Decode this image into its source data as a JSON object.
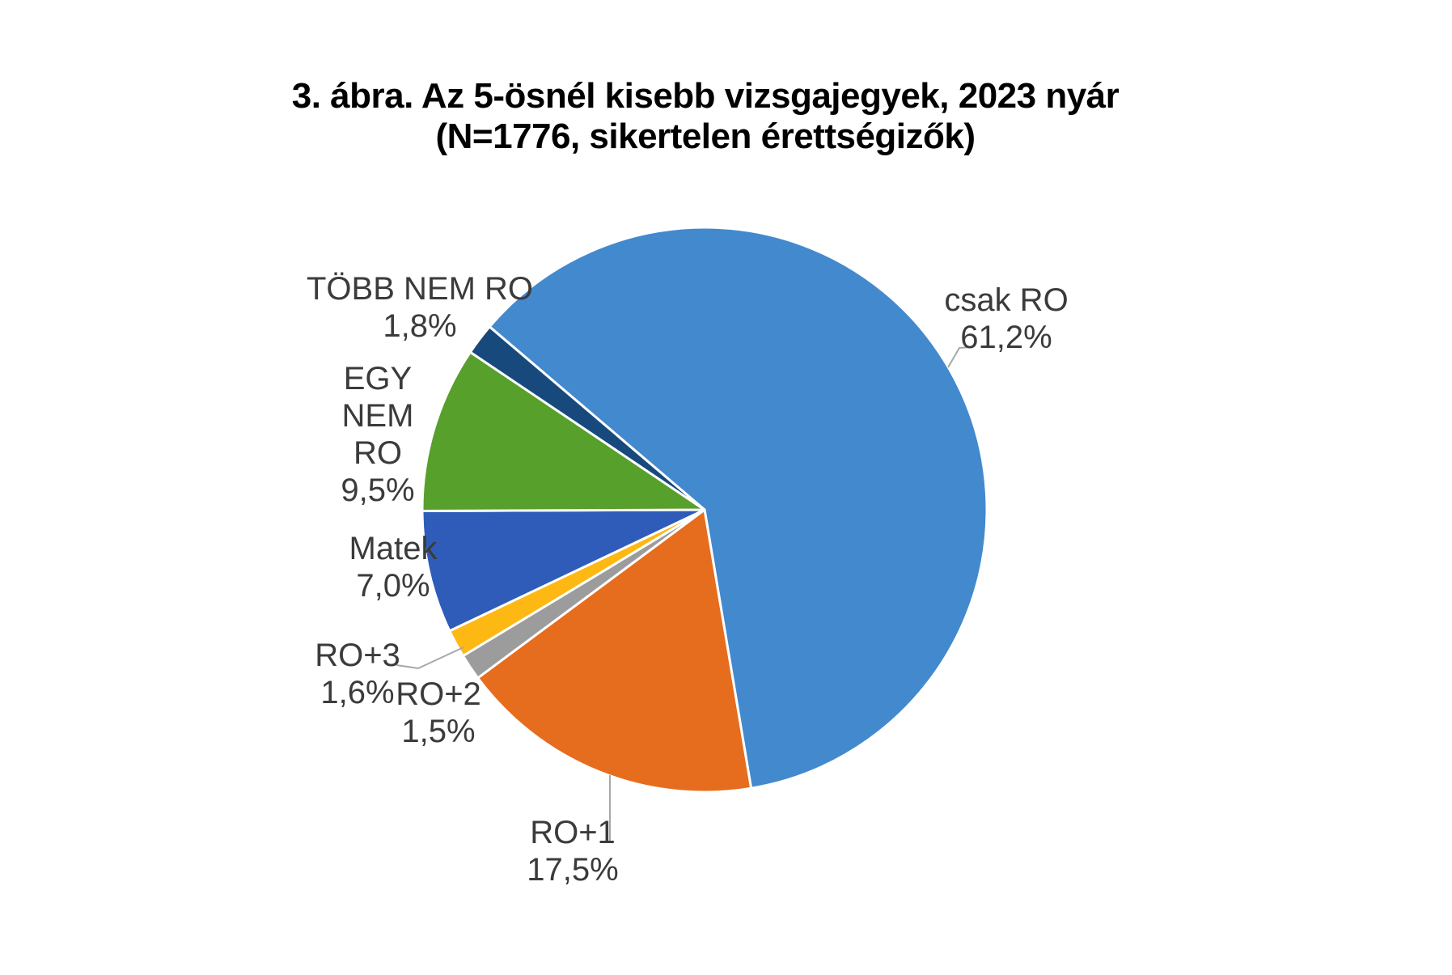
{
  "title": {
    "line1": "3. ábra. Az 5-ösnél kisebb vizsgajegyek, 2023 nyár",
    "line2": "(N=1776, sikertelen érettségizők)"
  },
  "chart_data": {
    "type": "pie",
    "title": "3. ábra. Az 5-ösnél kisebb vizsgajegyek, 2023 nyár",
    "subtitle": "(N=1776, sikertelen érettségizők)",
    "n_total": "N=1776",
    "direction": "clockwise",
    "start_angle_deg_from_north": 310.4,
    "label_style": "outside-with-leader-lines",
    "legend": "none",
    "background": "#ffffff",
    "separator_color": "#ffffff",
    "leader_line_color": "#a8a8a8",
    "label_text_color": "#3b3b3b",
    "slices": [
      {
        "label": "csak RO",
        "value_pct": 61.2,
        "display": "61,2%",
        "color": "#4389CE"
      },
      {
        "label": "RO+1",
        "value_pct": 17.5,
        "display": "17,5%",
        "color": "#E66C1E"
      },
      {
        "label": "RO+2",
        "value_pct": 1.5,
        "display": "1,5%",
        "color": "#9C9C9C"
      },
      {
        "label": "RO+3",
        "value_pct": 1.6,
        "display": "1,6%",
        "color": "#FDB813"
      },
      {
        "label": "Matek",
        "value_pct": 7.0,
        "display": "7,0%",
        "color": "#2E5CB8"
      },
      {
        "label": "EGY NEM RO",
        "value_pct": 9.5,
        "display": "9,5%",
        "color": "#56A02B"
      },
      {
        "label": "TÖBB NEM RO",
        "value_pct": 1.8,
        "display": "1,8%",
        "color": "#17497C"
      }
    ]
  }
}
